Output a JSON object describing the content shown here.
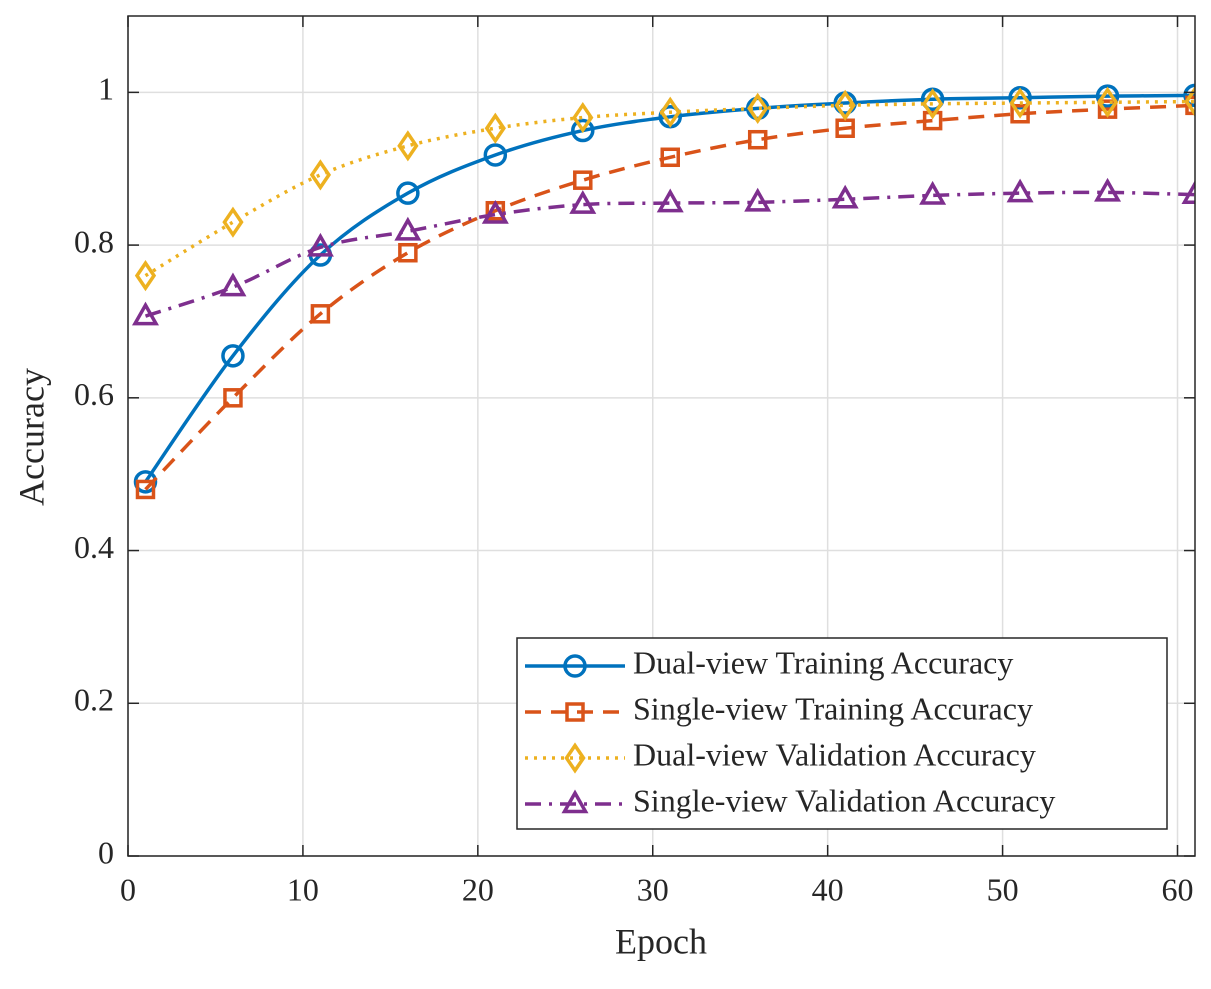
{
  "chart_data": {
    "type": "line",
    "xlabel": "Epoch",
    "ylabel": "Accuracy",
    "x": [
      1,
      6,
      11,
      16,
      21,
      26,
      31,
      36,
      41,
      46,
      51,
      56,
      61
    ],
    "series": [
      {
        "name": "Dual-view Training Accuracy",
        "color": "#0072bd",
        "marker": "circle",
        "dash": "solid",
        "values": [
          0.49,
          0.655,
          0.787,
          0.868,
          0.918,
          0.95,
          0.968,
          0.979,
          0.986,
          0.991,
          0.993,
          0.995,
          0.996
        ]
      },
      {
        "name": "Single-view Training Accuracy",
        "color": "#d95319",
        "marker": "square",
        "dash": "dashed",
        "values": [
          0.48,
          0.6,
          0.71,
          0.79,
          0.845,
          0.885,
          0.915,
          0.938,
          0.953,
          0.963,
          0.972,
          0.978,
          0.983
        ]
      },
      {
        "name": "Dual-view Validation Accuracy",
        "color": "#edb120",
        "marker": "diamond",
        "dash": "dotted",
        "values": [
          0.76,
          0.83,
          0.892,
          0.93,
          0.953,
          0.967,
          0.974,
          0.979,
          0.983,
          0.985,
          0.986,
          0.987,
          0.988
        ]
      },
      {
        "name": "Single-view Validation Accuracy",
        "color": "#7e2f8e",
        "marker": "triangle",
        "dash": "dashdot",
        "values": [
          0.707,
          0.745,
          0.797,
          0.818,
          0.84,
          0.853,
          0.855,
          0.856,
          0.86,
          0.865,
          0.868,
          0.869,
          0.866
        ]
      }
    ],
    "xlim": [
      0,
      61
    ],
    "ylim": [
      0,
      1.1
    ],
    "xticks": [
      0,
      10,
      20,
      30,
      40,
      50,
      60
    ],
    "yticks": [
      0,
      0.2,
      0.4,
      0.6,
      0.8,
      1
    ],
    "grid": true,
    "legend": "lower right"
  }
}
